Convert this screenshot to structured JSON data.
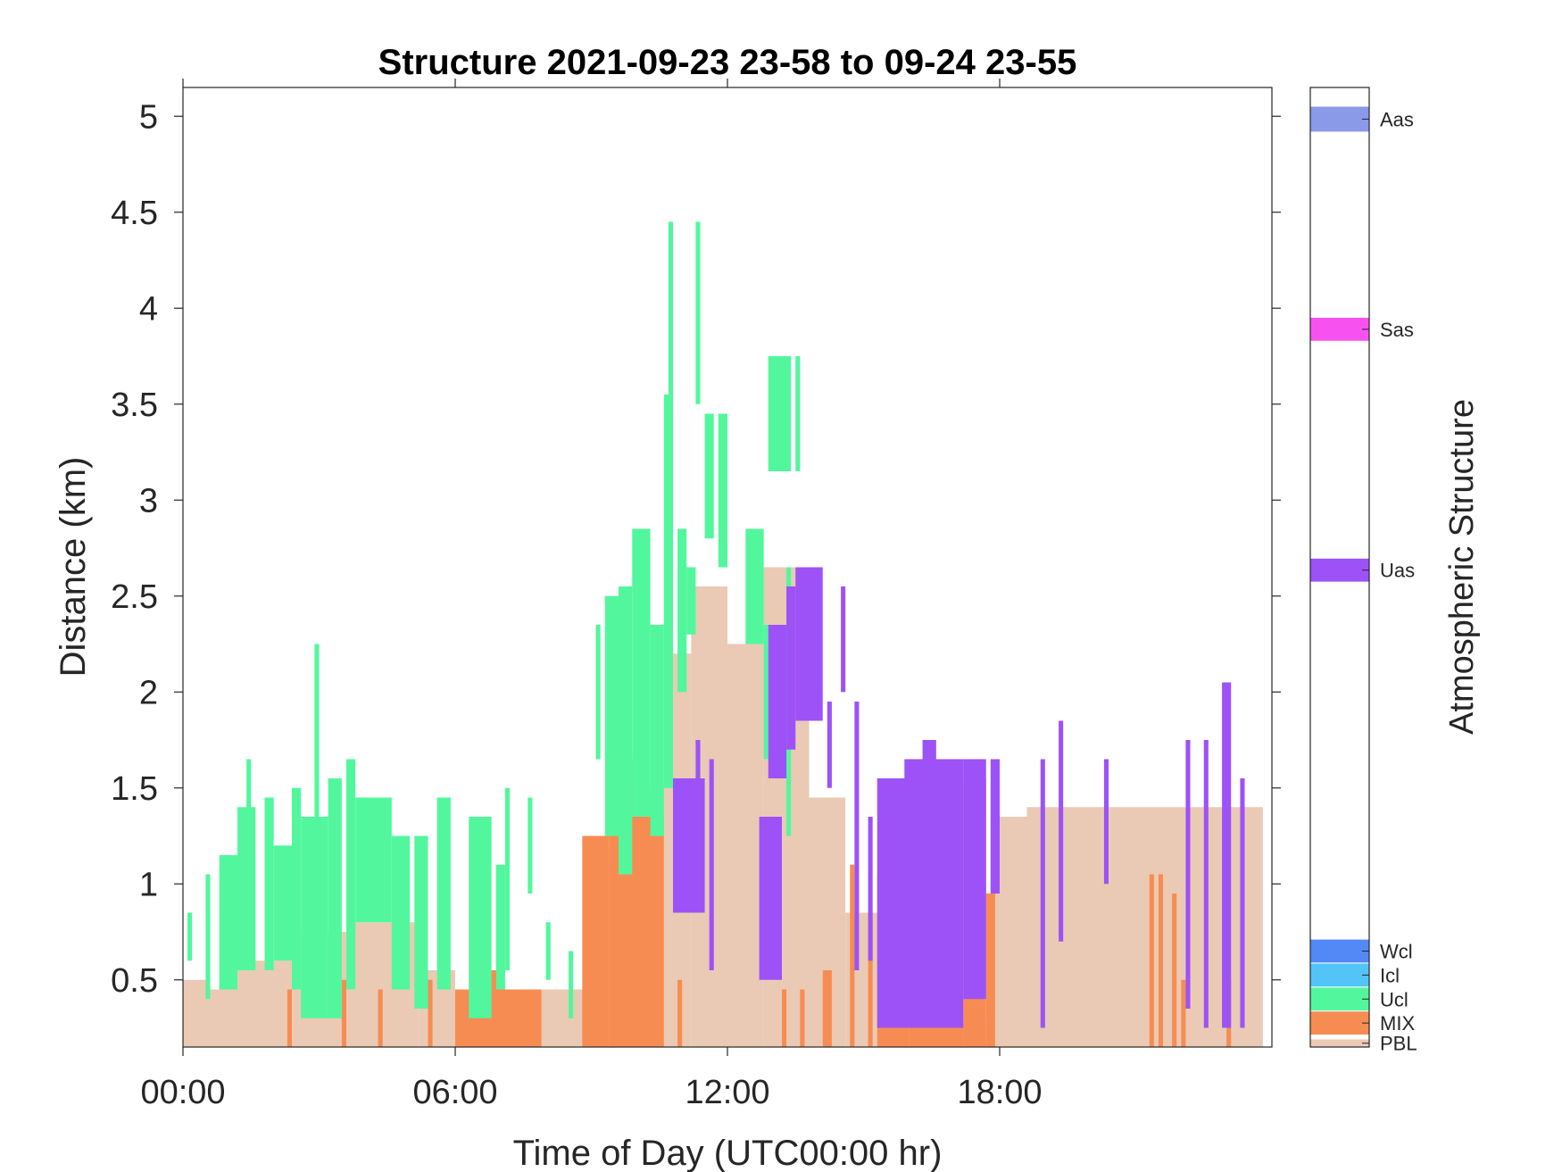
{
  "chart_data": {
    "type": "heatmap",
    "title": "Structure 2021-09-23 23-58 to 09-24 23-55",
    "xlabel": "Time of Day (UTC00:00 hr)",
    "ylabel": "Distance (km)",
    "xlim_hours": [
      0,
      24
    ],
    "ylim_km": [
      0.15,
      5.15
    ],
    "x_ticks": [
      {
        "value": 0,
        "label": "00:00"
      },
      {
        "value": 6,
        "label": "06:00"
      },
      {
        "value": 12,
        "label": "12:00"
      },
      {
        "value": 18,
        "label": "18:00"
      }
    ],
    "y_ticks": [
      {
        "value": 0.5,
        "label": "0.5"
      },
      {
        "value": 1,
        "label": "1"
      },
      {
        "value": 1.5,
        "label": "1.5"
      },
      {
        "value": 2,
        "label": "2"
      },
      {
        "value": 2.5,
        "label": "2.5"
      },
      {
        "value": 3,
        "label": "3"
      },
      {
        "value": 3.5,
        "label": "3.5"
      },
      {
        "value": 4,
        "label": "4"
      },
      {
        "value": 4.5,
        "label": "4.5"
      },
      {
        "value": 5,
        "label": "5"
      }
    ],
    "colorbar": {
      "label": "Atmospheric Structure",
      "classes": [
        {
          "name": "Aas",
          "color": "#8a9ae8",
          "level": 8
        },
        {
          "name": "Sas",
          "color": "#f752ef",
          "level": 7
        },
        {
          "name": "Uas",
          "color": "#9d52f7",
          "level": 6
        },
        {
          "name": "Wcl",
          "color": "#5289f7",
          "level": 5
        },
        {
          "name": "Icl",
          "color": "#52c4f7",
          "level": 4
        },
        {
          "name": "Ucl",
          "color": "#52f79d",
          "level": 3
        },
        {
          "name": "MIX",
          "color": "#f78c52",
          "level": 2
        },
        {
          "name": "PBL",
          "color": "#eacab4",
          "level": 1
        }
      ]
    },
    "layers": [
      {
        "class": "PBL",
        "segments": [
          [
            0.0,
            0.6,
            0.15,
            0.5
          ],
          [
            0.6,
            1.2,
            0.15,
            0.45
          ],
          [
            1.2,
            2.4,
            0.15,
            0.6
          ],
          [
            2.4,
            3.6,
            0.15,
            0.75
          ],
          [
            3.6,
            5.2,
            0.15,
            0.8
          ],
          [
            5.2,
            6.0,
            0.15,
            0.55
          ],
          [
            6.0,
            8.9,
            0.15,
            0.45
          ],
          [
            8.9,
            9.6,
            0.15,
            1.2
          ],
          [
            9.6,
            10.6,
            0.15,
            1.5
          ],
          [
            10.6,
            11.2,
            0.15,
            2.2
          ],
          [
            11.2,
            12.0,
            0.15,
            2.55
          ],
          [
            12.0,
            12.8,
            0.15,
            2.25
          ],
          [
            12.8,
            13.8,
            0.15,
            2.65
          ],
          [
            13.8,
            14.6,
            0.15,
            1.45
          ],
          [
            14.6,
            15.3,
            0.15,
            0.85
          ],
          [
            15.3,
            17.8,
            0.15,
            0.3
          ],
          [
            17.8,
            18.6,
            0.15,
            1.35
          ],
          [
            18.6,
            23.8,
            0.15,
            1.4
          ]
        ]
      },
      {
        "class": "MIX",
        "segments": [
          [
            2.3,
            2.4,
            0.15,
            0.45
          ],
          [
            3.5,
            3.6,
            0.15,
            0.5
          ],
          [
            4.3,
            4.4,
            0.15,
            0.45
          ],
          [
            5.4,
            5.5,
            0.15,
            0.5
          ],
          [
            6.0,
            7.9,
            0.15,
            0.45
          ],
          [
            6.6,
            7.0,
            0.15,
            0.55
          ],
          [
            8.8,
            9.4,
            0.15,
            1.25
          ],
          [
            9.4,
            10.2,
            0.15,
            1.65
          ],
          [
            10.2,
            10.6,
            0.15,
            1.35
          ],
          [
            10.9,
            11.0,
            0.15,
            0.5
          ],
          [
            13.2,
            13.3,
            0.15,
            0.45
          ],
          [
            13.6,
            13.7,
            0.15,
            0.45
          ],
          [
            14.1,
            14.3,
            0.15,
            0.55
          ],
          [
            14.7,
            14.8,
            0.15,
            1.1
          ],
          [
            15.1,
            15.2,
            0.15,
            0.85
          ],
          [
            15.3,
            16.0,
            0.15,
            1.05
          ],
          [
            16.0,
            17.2,
            0.15,
            0.25
          ],
          [
            17.2,
            17.7,
            0.15,
            1.55
          ],
          [
            17.7,
            17.9,
            0.15,
            0.95
          ],
          [
            21.3,
            21.4,
            0.15,
            1.05
          ],
          [
            21.5,
            21.6,
            0.15,
            1.05
          ],
          [
            21.8,
            21.9,
            0.15,
            0.95
          ],
          [
            22.0,
            22.1,
            0.15,
            0.5
          ],
          [
            23.0,
            23.1,
            0.15,
            0.5
          ]
        ]
      },
      {
        "class": "Ucl",
        "segments": [
          [
            0.1,
            0.2,
            0.6,
            0.85
          ],
          [
            0.5,
            0.6,
            0.4,
            1.05
          ],
          [
            0.8,
            1.2,
            0.45,
            1.15
          ],
          [
            1.2,
            1.6,
            0.55,
            1.4
          ],
          [
            1.4,
            1.5,
            1.0,
            1.65
          ],
          [
            1.8,
            2.0,
            0.55,
            1.45
          ],
          [
            2.0,
            2.4,
            0.6,
            1.2
          ],
          [
            2.4,
            2.6,
            0.45,
            1.5
          ],
          [
            2.6,
            3.2,
            0.3,
            1.35
          ],
          [
            2.9,
            3.0,
            1.0,
            2.25
          ],
          [
            3.2,
            3.5,
            0.3,
            1.55
          ],
          [
            3.6,
            3.8,
            0.45,
            1.65
          ],
          [
            3.8,
            4.6,
            0.8,
            1.45
          ],
          [
            4.6,
            5.0,
            0.45,
            1.25
          ],
          [
            5.1,
            5.4,
            0.35,
            1.25
          ],
          [
            5.6,
            5.9,
            0.45,
            1.45
          ],
          [
            6.3,
            6.8,
            0.3,
            1.35
          ],
          [
            6.9,
            7.1,
            0.45,
            1.1
          ],
          [
            7.1,
            7.2,
            0.55,
            1.5
          ],
          [
            7.6,
            7.7,
            0.95,
            1.45
          ],
          [
            8.0,
            8.1,
            0.5,
            0.8
          ],
          [
            8.5,
            8.6,
            0.3,
            0.65
          ],
          [
            9.1,
            9.2,
            1.65,
            2.35
          ],
          [
            9.3,
            9.6,
            1.25,
            2.5
          ],
          [
            9.6,
            9.9,
            1.05,
            2.55
          ],
          [
            9.9,
            10.3,
            1.35,
            2.85
          ],
          [
            10.3,
            10.6,
            1.25,
            2.35
          ],
          [
            10.6,
            10.8,
            1.5,
            3.55
          ],
          [
            10.7,
            10.8,
            3.5,
            4.45
          ],
          [
            10.9,
            11.1,
            2.0,
            2.85
          ],
          [
            11.1,
            11.3,
            2.3,
            2.65
          ],
          [
            11.3,
            11.4,
            3.5,
            4.45
          ],
          [
            11.5,
            11.7,
            2.8,
            3.45
          ],
          [
            11.8,
            12.0,
            2.65,
            3.45
          ],
          [
            12.4,
            12.8,
            2.25,
            2.85
          ],
          [
            12.8,
            12.9,
            1.65,
            2.35
          ],
          [
            12.9,
            13.4,
            3.15,
            3.75
          ],
          [
            13.5,
            13.6,
            3.15,
            3.75
          ],
          [
            13.3,
            13.4,
            1.25,
            2.65
          ],
          [
            15.6,
            15.7,
            0.25,
            1.55
          ],
          [
            17.8,
            17.9,
            0.95,
            1.6
          ]
        ]
      },
      {
        "class": "Uas",
        "segments": [
          [
            10.8,
            11.5,
            0.85,
            1.55
          ],
          [
            11.3,
            11.4,
            1.4,
            1.75
          ],
          [
            11.6,
            11.7,
            0.55,
            1.65
          ],
          [
            12.7,
            13.2,
            0.5,
            1.35
          ],
          [
            12.9,
            13.3,
            1.55,
            2.35
          ],
          [
            13.3,
            13.5,
            1.7,
            2.55
          ],
          [
            13.5,
            14.1,
            1.85,
            2.65
          ],
          [
            14.2,
            14.3,
            1.5,
            1.95
          ],
          [
            14.5,
            14.6,
            2.0,
            2.55
          ],
          [
            14.8,
            14.9,
            0.55,
            1.95
          ],
          [
            15.1,
            15.2,
            0.6,
            1.35
          ],
          [
            15.3,
            16.0,
            0.25,
            1.55
          ],
          [
            15.9,
            17.2,
            0.25,
            1.65
          ],
          [
            16.3,
            16.6,
            1.6,
            1.75
          ],
          [
            17.2,
            17.7,
            0.4,
            1.65
          ],
          [
            17.8,
            18.0,
            0.95,
            1.65
          ],
          [
            18.9,
            19.0,
            0.25,
            1.65
          ],
          [
            19.3,
            19.4,
            0.7,
            1.85
          ],
          [
            20.3,
            20.4,
            1.0,
            1.65
          ],
          [
            22.1,
            22.2,
            0.35,
            1.75
          ],
          [
            22.5,
            22.6,
            0.25,
            1.75
          ],
          [
            22.9,
            23.1,
            0.25,
            2.05
          ],
          [
            23.3,
            23.4,
            0.25,
            1.55
          ]
        ]
      }
    ]
  }
}
